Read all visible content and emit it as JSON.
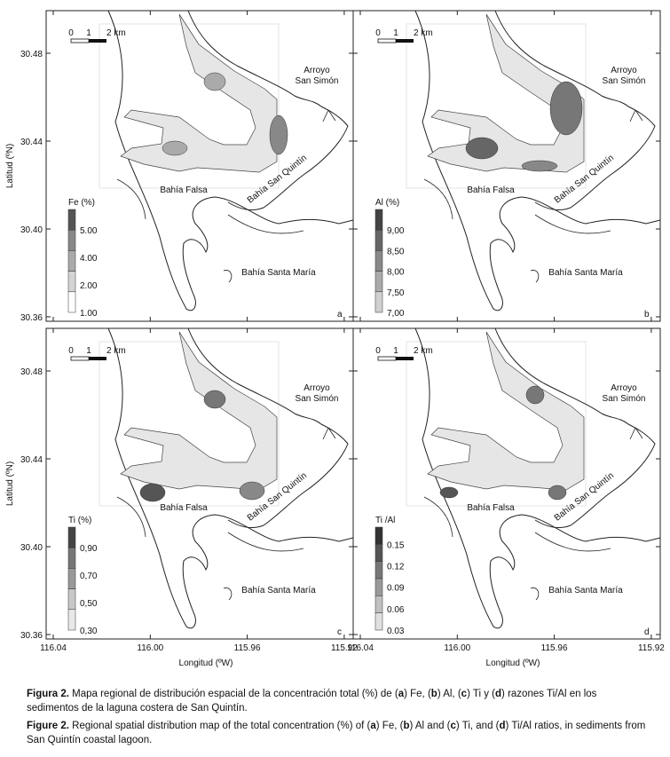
{
  "axes": {
    "x_label": "Longitud (ºW)",
    "y_label": "Latitud (ºN)",
    "x_ticks": [
      "116.04",
      "116.00",
      "115.96",
      "115.92"
    ],
    "y_ticks": [
      "30.48",
      "30.44",
      "30.40",
      "30.36"
    ]
  },
  "places": {
    "arroyo": [
      "Arroyo",
      "San Simón"
    ],
    "bahia_falsa": "Bahía Falsa",
    "bahia_san_quintin": "Bahía San Quintín",
    "bahia_santa_maria": "Bahía Santa María"
  },
  "scale_bar": [
    "0",
    "1",
    "2 km"
  ],
  "panels": [
    {
      "letter": "a",
      "legend_title": "Fe (%)",
      "legend_labels": [
        "5.00",
        "4.00",
        "2.00",
        "1.00"
      ]
    },
    {
      "letter": "b",
      "legend_title": "Al (%)",
      "legend_labels": [
        "9,00",
        "8,50",
        "8,00",
        "7,50",
        "7,00"
      ]
    },
    {
      "letter": "c",
      "legend_title": "Ti (%)",
      "legend_labels": [
        "0,90",
        "0,70",
        "0,50",
        "0,30"
      ]
    },
    {
      "letter": "d",
      "legend_title": "Ti /Al",
      "legend_labels": [
        "0.15",
        "0.12",
        "0.09",
        "0.06",
        "0.03"
      ]
    }
  ],
  "caption": {
    "es": [
      {
        "text": "Figura 2.",
        "bold": true
      },
      {
        "text": " Mapa regional de distribución espacial de la concentración total (%) de (",
        "bold": false
      },
      {
        "text": "a",
        "bold": true
      },
      {
        "text": ") Fe, (",
        "bold": false
      },
      {
        "text": "b",
        "bold": true
      },
      {
        "text": ") Al, (",
        "bold": false
      },
      {
        "text": "c",
        "bold": true
      },
      {
        "text": ") Ti y (",
        "bold": false
      },
      {
        "text": "d",
        "bold": true
      },
      {
        "text": ") razones Ti/Al en los sedimentos de la laguna costera de San Quintín.",
        "bold": false
      }
    ],
    "en": [
      {
        "text": "Figure 2.",
        "bold": true
      },
      {
        "text": " Regional spatial distribution map of the total concentration (%) of (",
        "bold": false
      },
      {
        "text": "a",
        "bold": true
      },
      {
        "text": ") Fe, (",
        "bold": false
      },
      {
        "text": "b",
        "bold": true
      },
      {
        "text": ") Al and (",
        "bold": false
      },
      {
        "text": "c",
        "bold": true
      },
      {
        "text": ") Ti, and (",
        "bold": false
      },
      {
        "text": "d",
        "bold": true
      },
      {
        "text": ") Ti/Al ratios, in sediments from San Quintín coastal lagoon.",
        "bold": false
      }
    ]
  }
}
